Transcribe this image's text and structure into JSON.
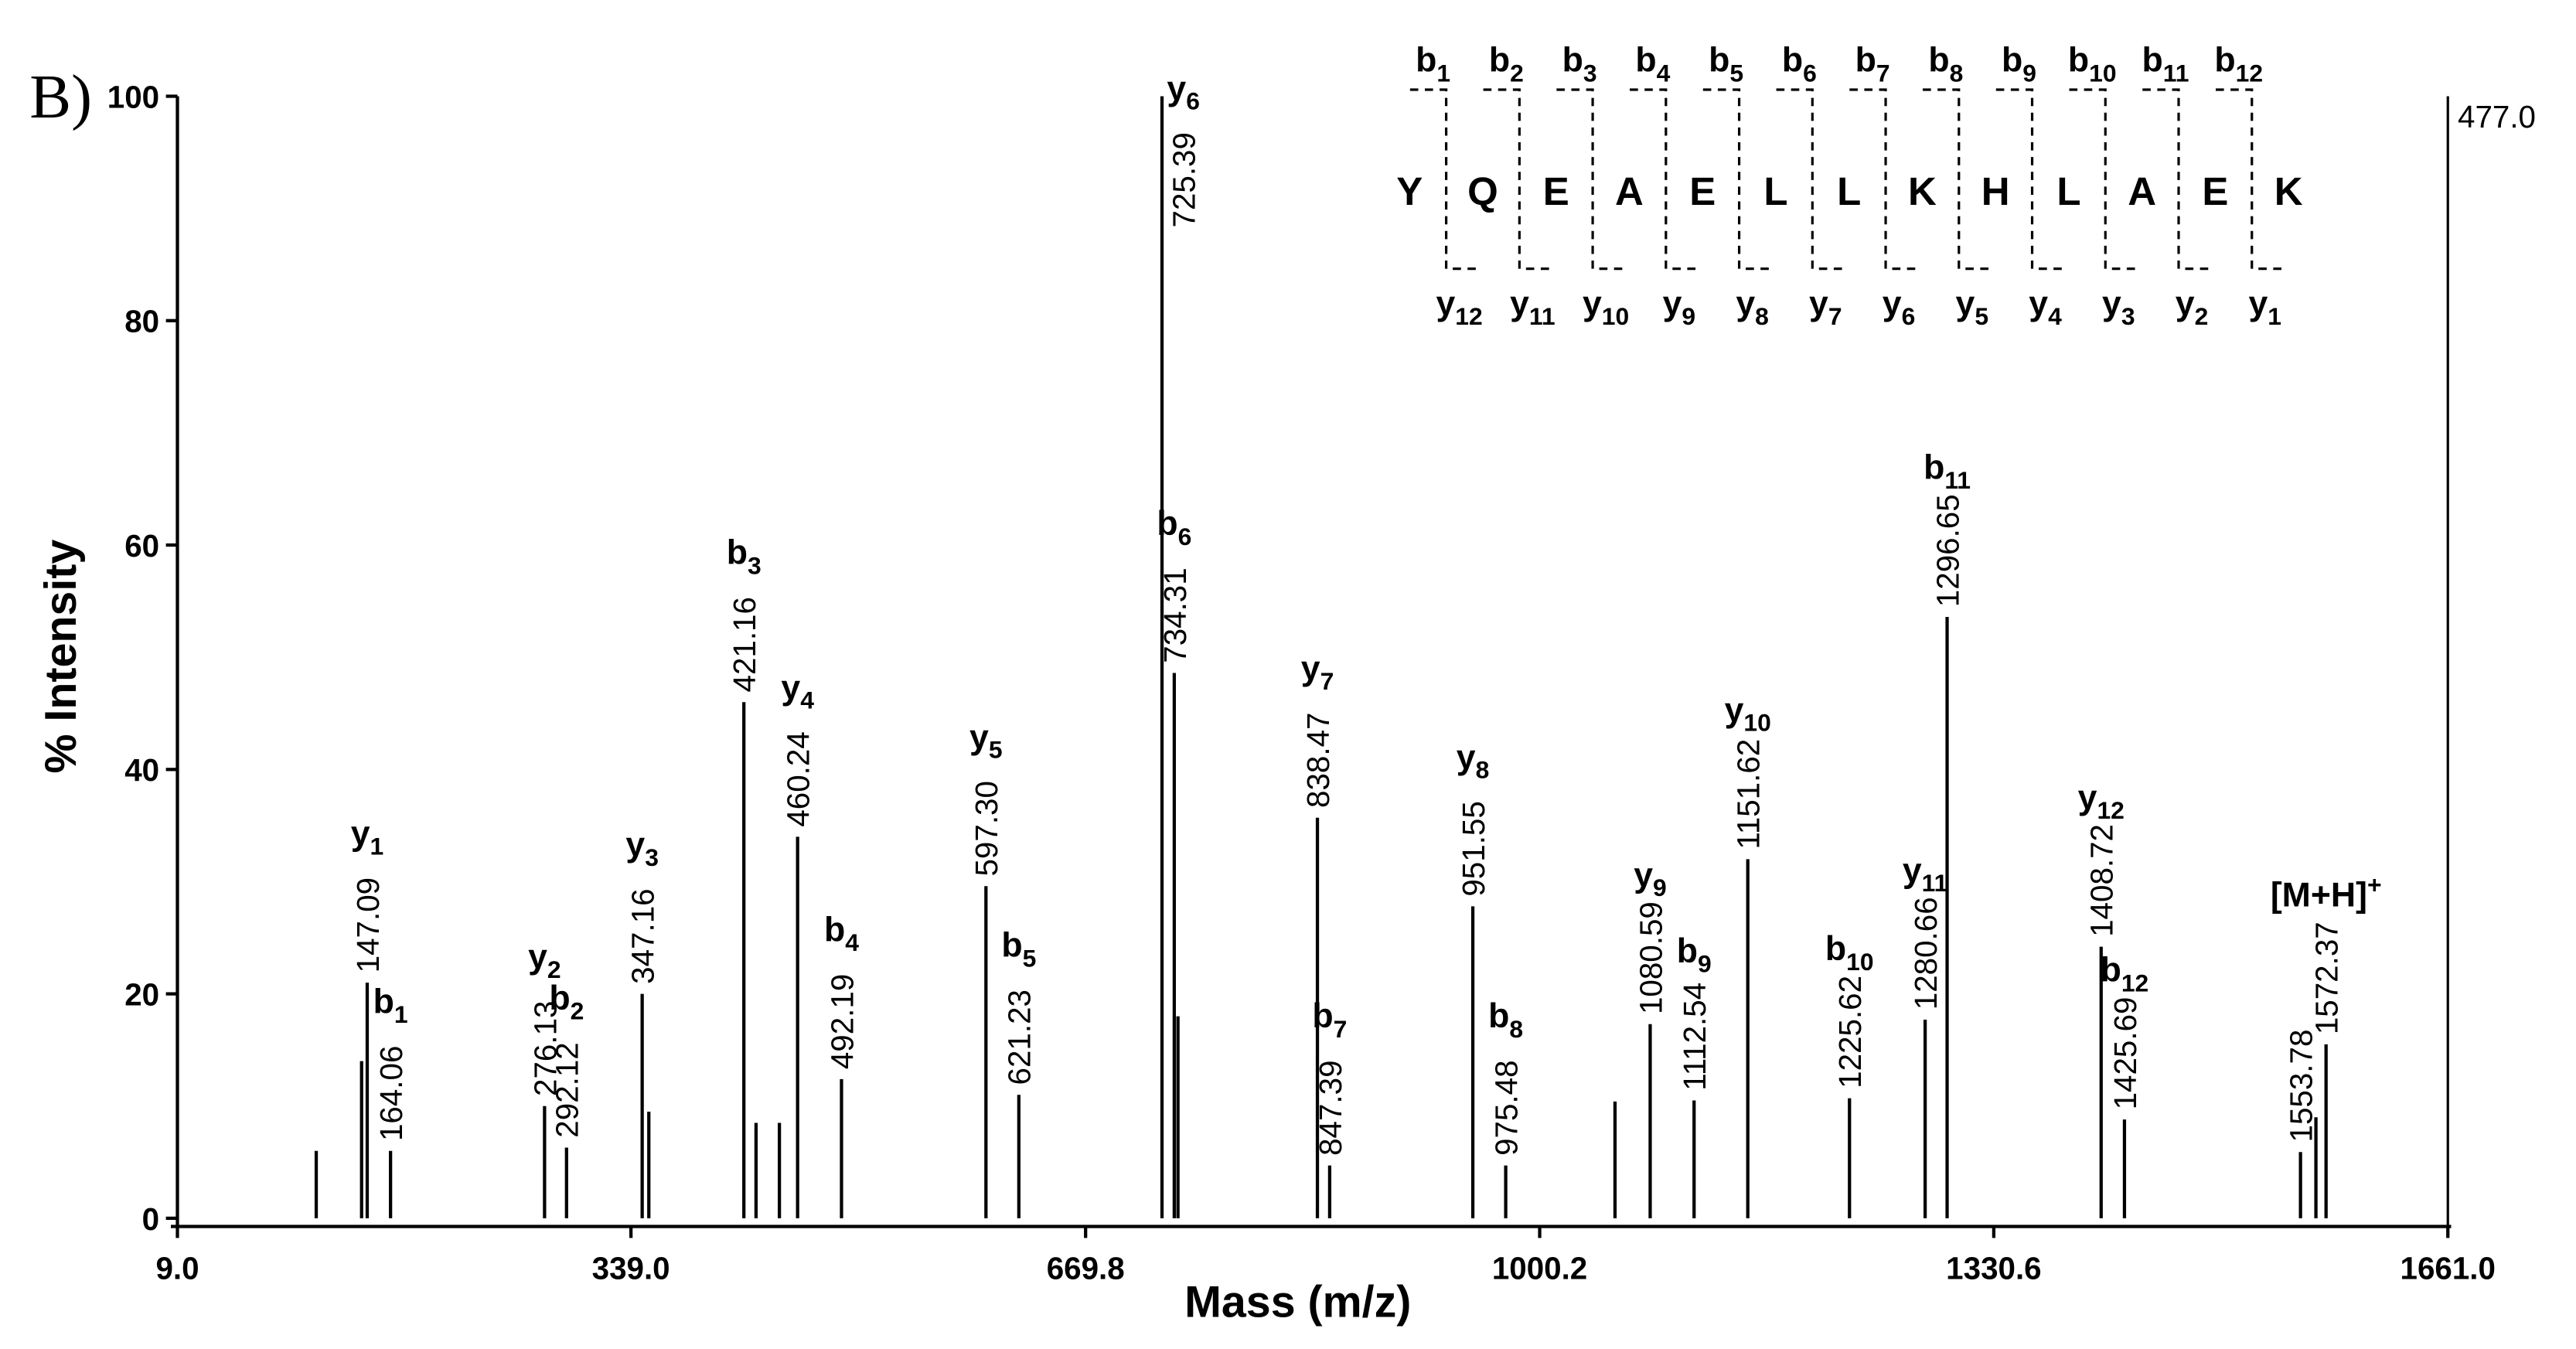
{
  "chart_data": {
    "type": "spectrum",
    "panel": "B)",
    "xlabel": "Mass (m/z)",
    "ylabel": "% Intensity",
    "max_count": "477.0",
    "xlim": [
      9.0,
      1661.0
    ],
    "ylim": [
      0,
      100
    ],
    "xticks": [
      {
        "value": 9.0,
        "label": "9.0"
      },
      {
        "value": 339.0,
        "label": "339.0"
      },
      {
        "value": 669.8,
        "label": "669.8"
      },
      {
        "value": 1000.2,
        "label": "1000.2"
      },
      {
        "value": 1330.6,
        "label": "1330.6"
      },
      {
        "value": 1661.0,
        "label": "1661.0"
      }
    ],
    "yticks": [
      0,
      20,
      40,
      60,
      80,
      100
    ],
    "color": "#000000",
    "x": [
      147.09,
      164.06,
      276.13,
      292.12,
      347.16,
      421.16,
      460.24,
      492.19,
      597.3,
      621.23,
      725.39,
      734.31,
      838.47,
      847.39,
      951.55,
      975.48,
      1080.59,
      1112.54,
      1151.62,
      1225.62,
      1280.66,
      1296.65,
      1408.72,
      1425.69,
      1553.78,
      1572.37
    ],
    "value_labels": [
      "147.09",
      "164.06",
      "276.13",
      "292.12",
      "347.16",
      "421.16",
      "460.24",
      "492.19",
      "597.30",
      "621.23",
      "725.39",
      "734.31",
      "838.47",
      "847.39",
      "951.55",
      "975.48",
      "1080.59",
      "1112.54",
      "1151.62",
      "1225.62",
      "1280.66",
      "1296.65",
      "1408.72",
      "1425.69",
      "1553.78",
      "1572.37"
    ],
    "values": [
      21,
      6,
      10,
      6.3,
      20,
      46,
      34,
      12.4,
      29.6,
      11,
      100,
      48.6,
      35.7,
      4.7,
      27.8,
      4.7,
      17.3,
      10.5,
      32,
      10.7,
      17.7,
      53.6,
      24.2,
      8.8,
      5.9,
      15.5
    ],
    "ions": [
      "y",
      "b",
      "y",
      "b",
      "y",
      "b",
      "y",
      "b",
      "y",
      "b",
      "y",
      "b",
      "y",
      "b",
      "y",
      "b",
      "y",
      "b",
      "y",
      "b",
      "y",
      "b",
      "y",
      "b",
      null,
      "[M+H]"
    ],
    "ion_indices": [
      "1",
      "1",
      "2",
      "2",
      "3",
      "3",
      "4",
      "4",
      "5",
      "5",
      "6",
      "6",
      "7",
      "7",
      "8",
      "8",
      "9",
      "9",
      "10",
      "10",
      "11",
      "11",
      "12",
      "12",
      null,
      "+"
    ],
    "minor_x": [
      110,
      143,
      352,
      430,
      447,
      737,
      1055,
      1565
    ],
    "minor_values": [
      6,
      14,
      9.5,
      8.5,
      8.5,
      18,
      10.4,
      9
    ],
    "sequence": {
      "residues": [
        "Y",
        "Q",
        "E",
        "A",
        "E",
        "L",
        "L",
        "K",
        "H",
        "L",
        "A",
        "E",
        "K"
      ],
      "b_ion": "b",
      "b_indices": [
        "1",
        "2",
        "3",
        "4",
        "5",
        "6",
        "7",
        "8",
        "9",
        "10",
        "11",
        "12"
      ],
      "y_ion": "y",
      "y_indices": [
        "12",
        "11",
        "10",
        "9",
        "8",
        "7",
        "6",
        "5",
        "4",
        "3",
        "2",
        "1"
      ]
    }
  }
}
